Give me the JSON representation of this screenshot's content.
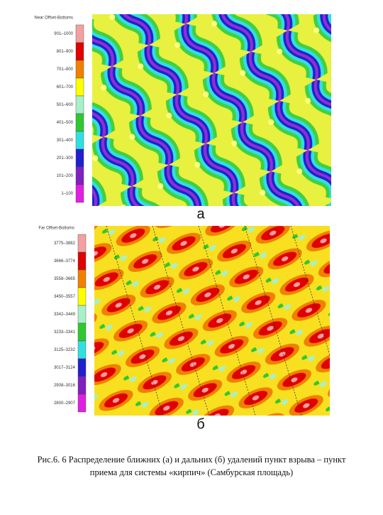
{
  "figures": [
    {
      "legend": {
        "title": "Near Offset-Bottoms",
        "items": [
          {
            "label": "901–1000",
            "color": "#f4a0a0"
          },
          {
            "label": "801–900",
            "color": "#e00000"
          },
          {
            "label": "701–800",
            "color": "#f08000"
          },
          {
            "label": "601–700",
            "color": "#ffff00"
          },
          {
            "label": "501–600",
            "color": "#a8f0c8"
          },
          {
            "label": "401–500",
            "color": "#30c830"
          },
          {
            "label": "301–400",
            "color": "#30e0e0"
          },
          {
            "label": "201–300",
            "color": "#2020d0"
          },
          {
            "label": "101–200",
            "color": "#8020c0"
          },
          {
            "label": "1–100",
            "color": "#e020e0"
          }
        ]
      },
      "panel_label": "а"
    },
    {
      "legend": {
        "title": "Far Offset-Bottoms",
        "items": [
          {
            "label": "3775–3882",
            "color": "#f4a0a0"
          },
          {
            "label": "3666–3774",
            "color": "#e00000"
          },
          {
            "label": "3558–3665",
            "color": "#f08000"
          },
          {
            "label": "3450–3557",
            "color": "#ffff00"
          },
          {
            "label": "3342–3449",
            "color": "#a8f0c8"
          },
          {
            "label": "3233–3341",
            "color": "#30c830"
          },
          {
            "label": "3125–3232",
            "color": "#30e0e0"
          },
          {
            "label": "3017–3124",
            "color": "#2020d0"
          },
          {
            "label": "2908–3016",
            "color": "#8020c0"
          },
          {
            "label": "2800–2907",
            "color": "#e020e0"
          }
        ]
      },
      "panel_label": "б"
    }
  ],
  "caption": {
    "line1": "Рис.6. 6 Распределение ближних (а) и дальних (б) удалений пункт взрыва – пункт",
    "line2": "приема для системы «кирпич» (Самбурская площадь)"
  }
}
